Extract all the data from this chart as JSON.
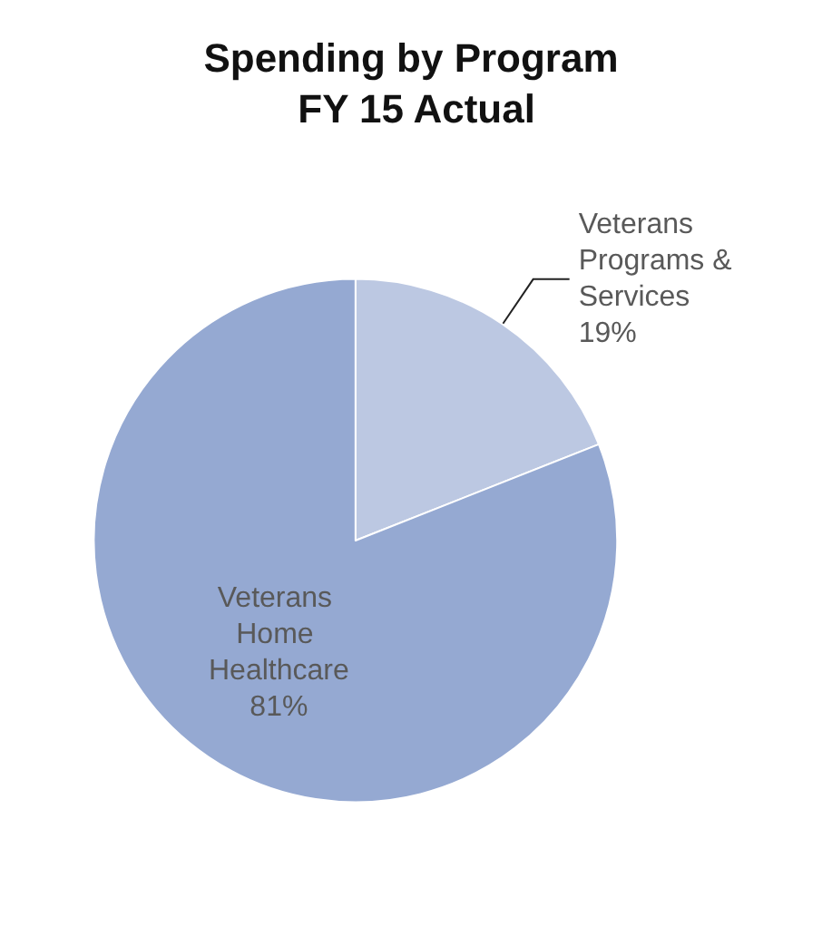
{
  "chart_data": {
    "type": "pie",
    "title": "Spending by Program FY 15 Actual",
    "categories": [
      "Veterans Programs & Services",
      "Veterans Home Healthcare"
    ],
    "values": [
      19,
      81
    ],
    "value_labels": [
      "19%",
      "81%"
    ],
    "colors": [
      "#bcc8e2",
      "#95a9d2"
    ],
    "legend": false
  }
}
